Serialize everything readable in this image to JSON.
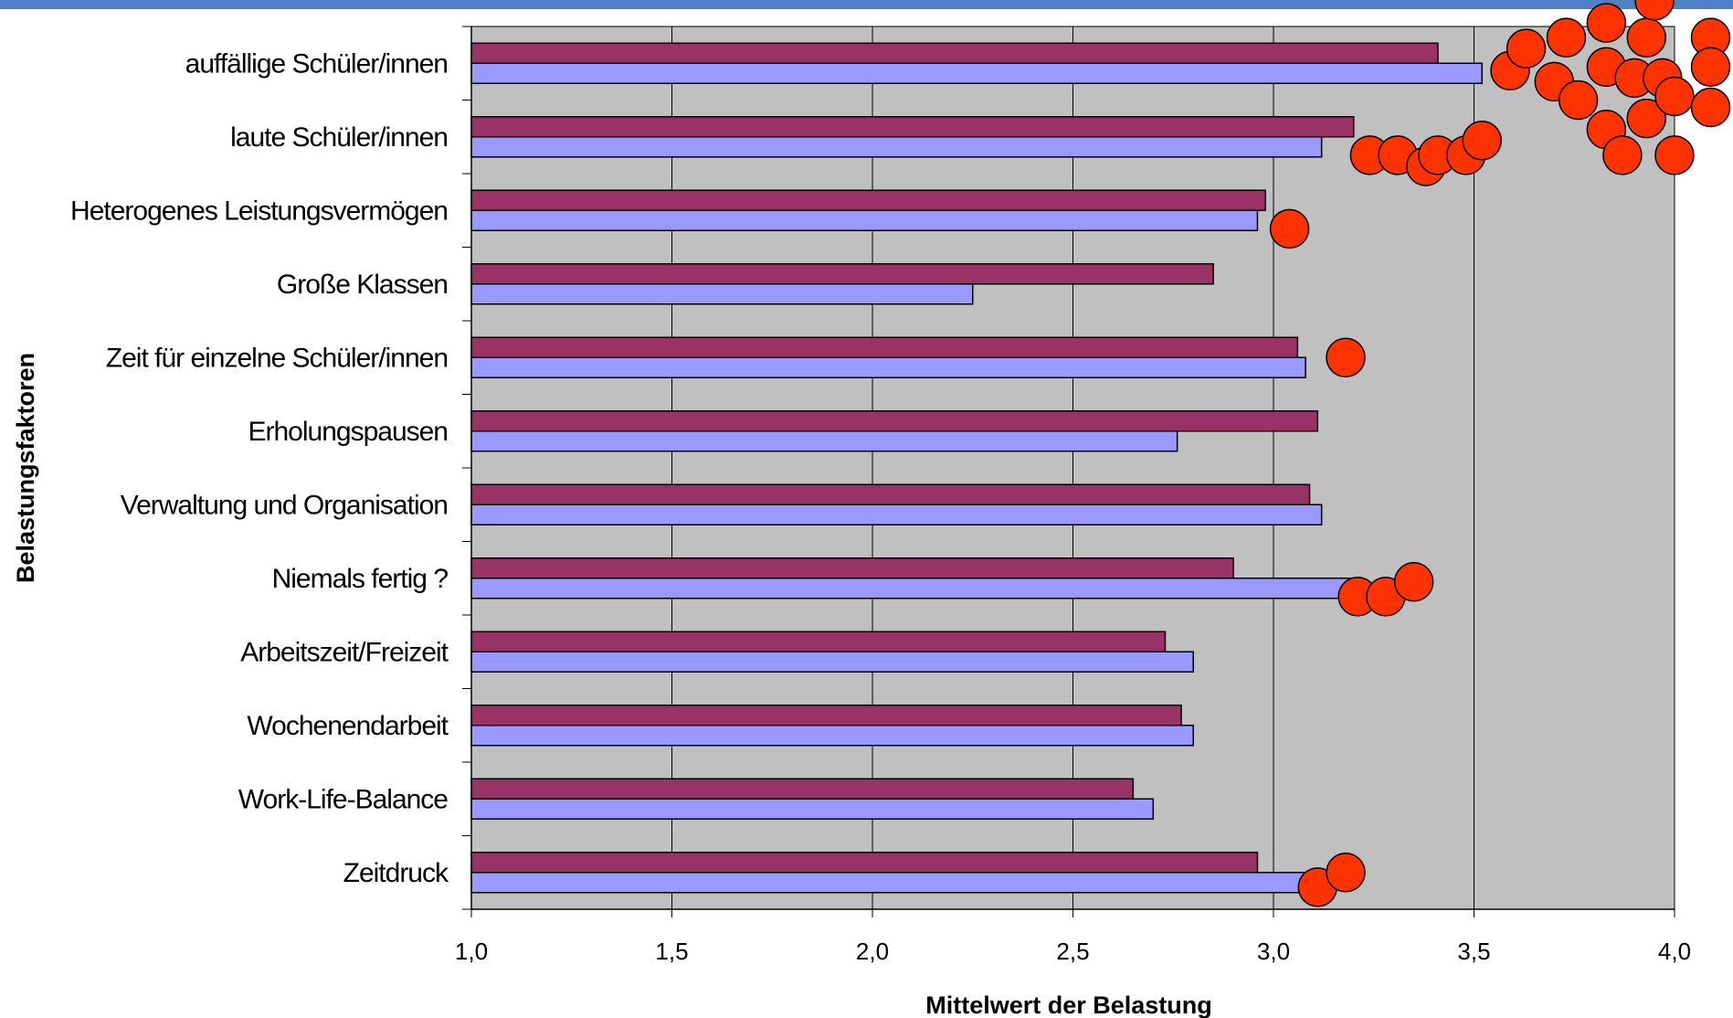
{
  "chart_data": {
    "type": "bar",
    "orientation": "horizontal",
    "title": "",
    "xlabel": "Mittelwert der Belastung",
    "ylabel": "Belastungsfaktoren",
    "xlim": [
      1.0,
      4.0
    ],
    "xticks": [
      "1,0",
      "1,5",
      "2,0",
      "2,5",
      "3,0",
      "3,5",
      "4,0"
    ],
    "categories": [
      "auffällige Schüler/innen",
      "laute Schüler/innen",
      "Heterogenes Leistungsvermögen",
      "Große Klassen",
      "Zeit für einzelne Schüler/innen",
      "Erholungspausen",
      "Verwaltung und Organisation",
      "Niemals fertig ?",
      "Arbeitszeit/Freizeit",
      "Wochenendarbeit",
      "Work-Life-Balance",
      "Zeitdruck"
    ],
    "series": [
      {
        "color": "#993366",
        "values": [
          3.41,
          3.2,
          2.98,
          2.85,
          3.06,
          3.11,
          3.09,
          2.9,
          2.73,
          2.77,
          2.65,
          2.96
        ]
      },
      {
        "color": "#9999ff",
        "values": [
          3.52,
          3.12,
          2.96,
          2.25,
          3.08,
          2.76,
          3.12,
          3.2,
          2.8,
          2.8,
          2.7,
          3.08
        ]
      }
    ],
    "markers": {
      "color": "#ff3300",
      "points": [
        {
          "x": 3.59,
          "y": 0.1
        },
        {
          "x": 3.63,
          "y": -0.2
        },
        {
          "x": 3.7,
          "y": 0.25
        },
        {
          "x": 3.73,
          "y": -0.35
        },
        {
          "x": 3.76,
          "y": 0.5
        },
        {
          "x": 3.83,
          "y": -0.55
        },
        {
          "x": 3.83,
          "y": 0.05
        },
        {
          "x": 3.83,
          "y": 0.9
        },
        {
          "x": 3.87,
          "y": 1.25
        },
        {
          "x": 3.9,
          "y": 0.2
        },
        {
          "x": 3.93,
          "y": -0.35
        },
        {
          "x": 3.93,
          "y": 0.75
        },
        {
          "x": 3.95,
          "y": -0.85
        },
        {
          "x": 3.97,
          "y": 0.2
        },
        {
          "x": 4.0,
          "y": 0.45
        },
        {
          "x": 4.0,
          "y": 1.25
        },
        {
          "x": 4.09,
          "y": -0.35
        },
        {
          "x": 4.09,
          "y": 0.05
        },
        {
          "x": 4.09,
          "y": 0.6
        },
        {
          "x": 3.24,
          "y": 1.25
        },
        {
          "x": 3.31,
          "y": 1.25
        },
        {
          "x": 3.38,
          "y": 1.4
        },
        {
          "x": 3.41,
          "y": 1.25
        },
        {
          "x": 3.48,
          "y": 1.25
        },
        {
          "x": 3.52,
          "y": 1.05
        },
        {
          "x": 3.04,
          "y": 2.25
        },
        {
          "x": 3.18,
          "y": 4.0
        },
        {
          "x": 3.21,
          "y": 7.25
        },
        {
          "x": 3.28,
          "y": 7.25
        },
        {
          "x": 3.35,
          "y": 7.05
        },
        {
          "x": 3.11,
          "y": 11.2
        },
        {
          "x": 3.18,
          "y": 11.0
        }
      ]
    }
  }
}
